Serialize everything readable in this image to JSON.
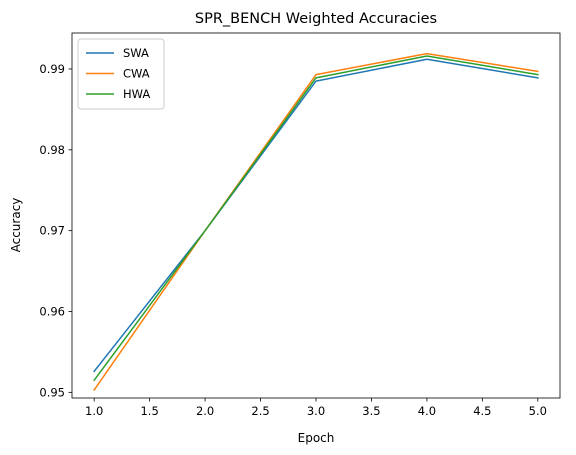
{
  "chart_data": {
    "type": "line",
    "title": "SPR_BENCH Weighted Accuracies",
    "xlabel": "Epoch",
    "ylabel": "Accuracy",
    "x": [
      1,
      2,
      3,
      4,
      5
    ],
    "xlim": [
      0.8,
      5.2
    ],
    "ylim": [
      0.9493,
      0.99445
    ],
    "xticks": [
      1.0,
      1.5,
      2.0,
      2.5,
      3.0,
      3.5,
      4.0,
      4.5,
      5.0
    ],
    "xtick_labels": [
      "1.0",
      "1.5",
      "2.0",
      "2.5",
      "3.0",
      "3.5",
      "4.0",
      "4.5",
      "5.0"
    ],
    "yticks": [
      0.95,
      0.96,
      0.97,
      0.98,
      0.99
    ],
    "ytick_labels": [
      "0.95",
      "0.96",
      "0.97",
      "0.98",
      "0.99"
    ],
    "grid": false,
    "legend_position": "top-left",
    "series": [
      {
        "name": "SWA",
        "color": "#1f77b4",
        "values": [
          0.9526,
          0.97,
          0.9885,
          0.9912,
          0.9889
        ]
      },
      {
        "name": "CWA",
        "color": "#ff7f0e",
        "values": [
          0.9503,
          0.97,
          0.9893,
          0.9919,
          0.9897
        ]
      },
      {
        "name": "HWA",
        "color": "#2ca02c",
        "values": [
          0.9515,
          0.97,
          0.9889,
          0.9916,
          0.9893
        ]
      }
    ]
  }
}
